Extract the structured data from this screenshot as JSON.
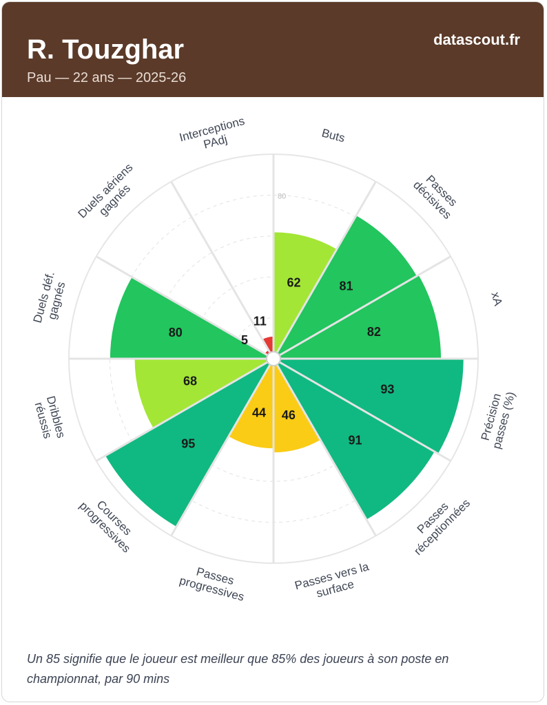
{
  "header": {
    "player_name": "R. Touzghar",
    "subtitle": "Pau — 22 ans — 2025-26",
    "brand": "datascout.fr"
  },
  "footnote": "Un 85 signifie que le joueur est meilleur que 85% des joueurs à son poste en championnat, par 90 mins",
  "chart_data": {
    "type": "radar",
    "title": "",
    "scale_max": 100,
    "gridline_values": [
      20,
      40,
      60,
      80,
      100
    ],
    "labeled_gridline": "80",
    "categories": [
      [
        "Buts"
      ],
      [
        "Passes",
        "décisives"
      ],
      [
        "xA"
      ],
      [
        "Précision",
        "passes (%)"
      ],
      [
        "Passes",
        "réceptionnées"
      ],
      [
        "Passes vers la",
        "surface"
      ],
      [
        "Passes",
        "progressives"
      ],
      [
        "Courses",
        "progressives"
      ],
      [
        "Dribbles",
        "réussis"
      ],
      [
        "Duels déf.",
        "gagnés"
      ],
      [
        "Duels aériens",
        "gagnés"
      ],
      [
        "Interceptions",
        "PAdj"
      ]
    ],
    "values": [
      62,
      81,
      82,
      93,
      91,
      46,
      44,
      95,
      68,
      80,
      5,
      11
    ],
    "color_scale": [
      {
        "min": 0,
        "color": "#e53935"
      },
      {
        "min": 21,
        "color": "#fb8c00"
      },
      {
        "min": 41,
        "color": "#facc15"
      },
      {
        "min": 61,
        "color": "#a3e635"
      },
      {
        "min": 71,
        "color": "#22c55e"
      },
      {
        "min": 86,
        "color": "#10b981"
      }
    ]
  }
}
